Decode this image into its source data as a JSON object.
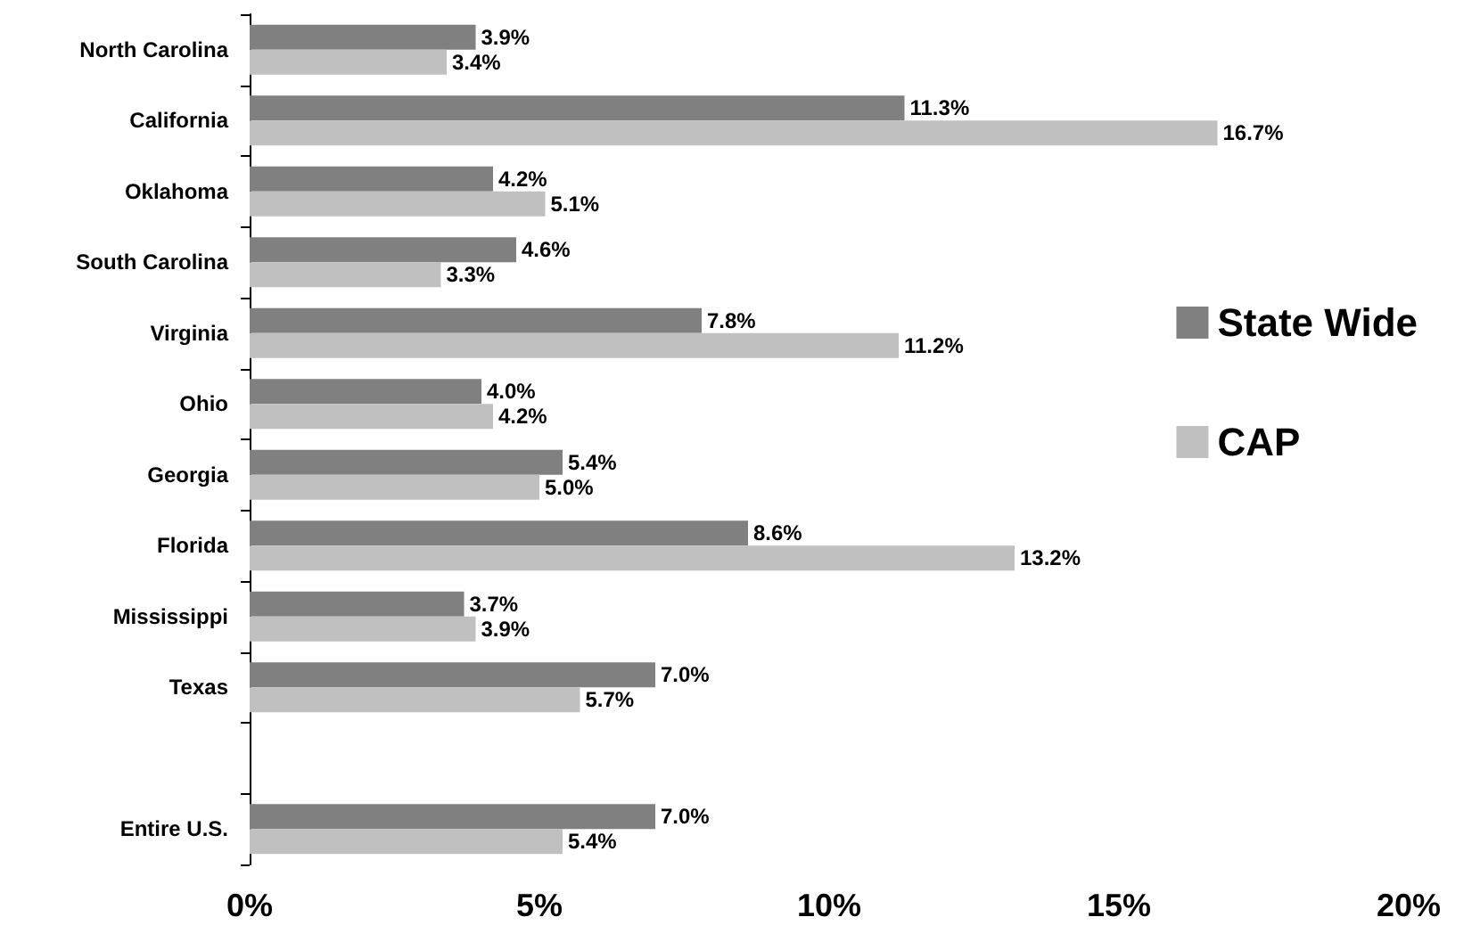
{
  "chart_data": {
    "type": "bar",
    "orientation": "horizontal",
    "categories": [
      "North Carolina",
      "California",
      "Oklahoma",
      "South Carolina",
      "Virginia",
      "Ohio",
      "Georgia",
      "Florida",
      "Mississippi",
      "Texas",
      null,
      "Entire U.S."
    ],
    "series": [
      {
        "name": "State Wide",
        "color": "#808080",
        "values": [
          3.9,
          11.3,
          4.2,
          4.6,
          7.8,
          4.0,
          5.4,
          8.6,
          3.7,
          7.0,
          null,
          7.0
        ],
        "value_labels": [
          "3.9%",
          "11.3%",
          "4.2%",
          "4.6%",
          "7.8%",
          "4.0%",
          "5.4%",
          "8.6%",
          "3.7%",
          "7.0%",
          null,
          "7.0%"
        ]
      },
      {
        "name": "CAP",
        "color": "#c0c0c0",
        "values": [
          3.4,
          16.7,
          5.1,
          3.3,
          11.2,
          4.2,
          5.0,
          13.2,
          3.9,
          5.7,
          null,
          5.4
        ],
        "value_labels": [
          "3.4%",
          "16.7%",
          "5.1%",
          "3.3%",
          "11.2%",
          "4.2%",
          "5.0%",
          "13.2%",
          "3.9%",
          "5.7%",
          null,
          "5.4%"
        ]
      }
    ],
    "xlim": [
      0,
      20
    ],
    "xticks": [
      {
        "value": 0,
        "label": "0%"
      },
      {
        "value": 5,
        "label": "5%"
      },
      {
        "value": 10,
        "label": "10%"
      },
      {
        "value": 15,
        "label": "15%"
      },
      {
        "value": 20,
        "label": "20%"
      }
    ],
    "legend": "right",
    "grid": false
  }
}
